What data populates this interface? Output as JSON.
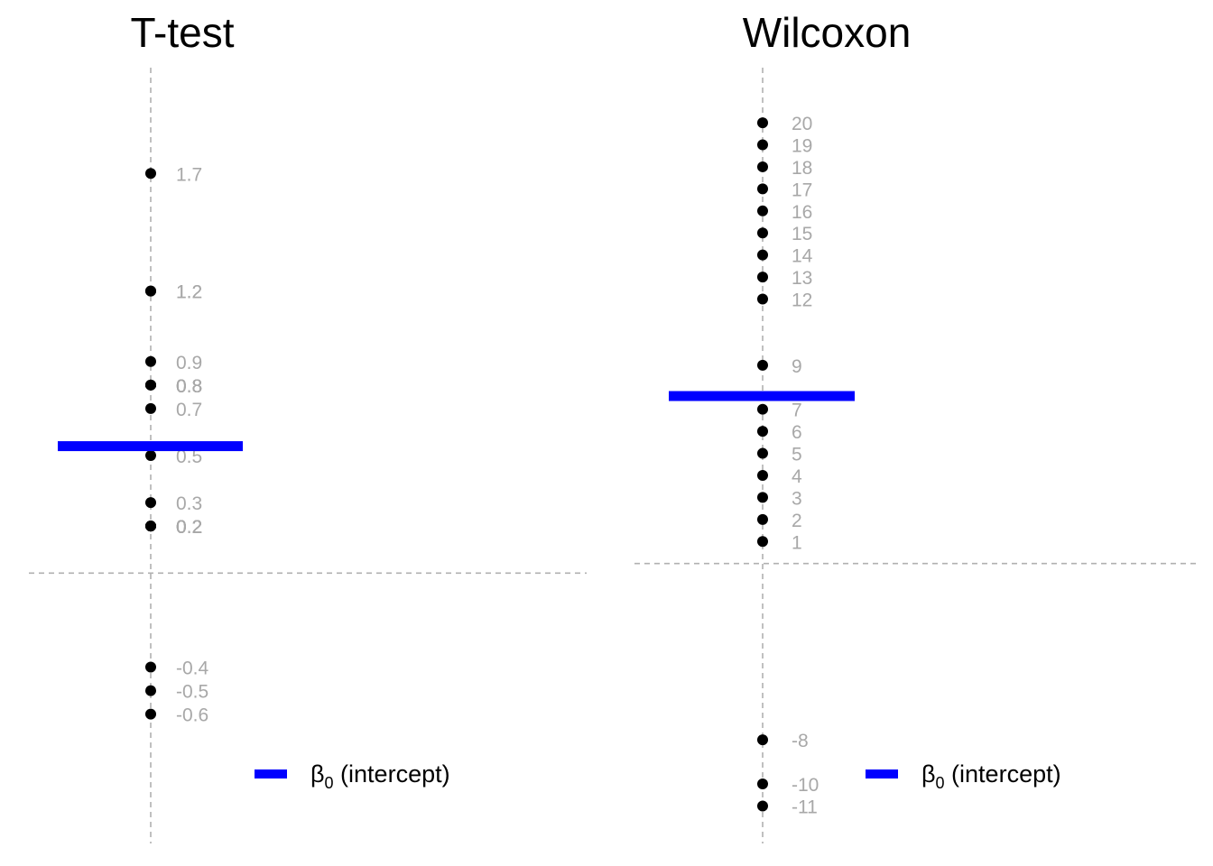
{
  "chart_data": [
    {
      "type": "scatter",
      "title": "T-test",
      "points": [
        1.7,
        1.2,
        1.2,
        0.9,
        0.8,
        0.8,
        0.8,
        0.8,
        0.7,
        0.5,
        0.3,
        0.2,
        0.2,
        0.2,
        0.2,
        0.2,
        0.2,
        -0.4,
        -0.5,
        -0.6
      ],
      "point_labels": [
        "1.7",
        "1.2",
        "1.2",
        "0.9",
        "0.8",
        "0.8",
        "0.8",
        "0.8",
        "0.7",
        "0.5",
        "0.3",
        "0.2",
        "0.2",
        "0.2",
        "0.2",
        "0.2",
        "0.2",
        "-0.4",
        "-0.5",
        "-0.6"
      ],
      "intercept": 0.54,
      "legend": {
        "label_main": "β",
        "label_sub": "0",
        "label_rest": " (intercept)",
        "color": "#0000ff"
      },
      "ylim": [
        -1.15,
        2.15
      ],
      "grid": false,
      "reference_lines": {
        "x": 0,
        "y": 0
      }
    },
    {
      "type": "scatter",
      "title": "Wilcoxon",
      "points": [
        20,
        19,
        18,
        17,
        16,
        15,
        14,
        13,
        12,
        9,
        7,
        6,
        5,
        4,
        3,
        2,
        1,
        -8,
        -10,
        -11
      ],
      "point_labels": [
        "20",
        "19",
        "18",
        "17",
        "16",
        "15",
        "14",
        "13",
        "12",
        "9",
        "7",
        "6",
        "5",
        "4",
        "3",
        "2",
        "1",
        "-8",
        "-10",
        "-11"
      ],
      "intercept": 7.6,
      "legend": {
        "label_main": "β",
        "label_sub": "0",
        "label_rest": " (intercept)",
        "color": "#0000ff"
      },
      "ylim": [
        -12.7,
        22.5
      ],
      "grid": false,
      "reference_lines": {
        "x": 0,
        "y": 0
      }
    }
  ],
  "colors": {
    "point": "#000000",
    "label": "#a8a8a8",
    "intercept": "#0000ff",
    "reference": "#b0b0b0"
  }
}
